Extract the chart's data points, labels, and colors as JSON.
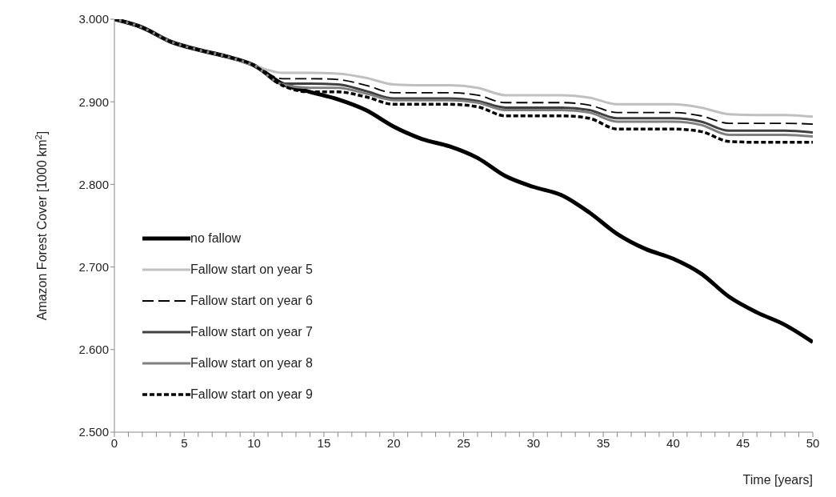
{
  "chart_data": {
    "type": "line",
    "xlabel": "Time  [years]",
    "ylabel": "Amazon Forest Cover [1000 km$^{2}$]",
    "x": [
      0,
      2,
      4,
      6,
      8,
      10,
      12,
      14,
      16,
      18,
      20,
      22,
      24,
      26,
      28,
      30,
      32,
      34,
      36,
      38,
      40,
      42,
      44,
      46,
      48,
      50
    ],
    "series": [
      {
        "name": "no fallow",
        "color": "#000000",
        "line_style": "solid",
        "values": [
          3.0,
          2.99,
          2.973,
          2.963,
          2.955,
          2.944,
          2.922,
          2.912,
          2.903,
          2.89,
          2.87,
          2.855,
          2.846,
          2.832,
          2.81,
          2.797,
          2.787,
          2.766,
          2.74,
          2.722,
          2.71,
          2.692,
          2.664,
          2.645,
          2.63,
          2.609
        ]
      },
      {
        "name": "Fallow start on year 5",
        "color": "#c0c0c0",
        "line_style": "solid",
        "values": [
          3.0,
          2.99,
          2.973,
          2.963,
          2.955,
          2.944,
          2.935,
          2.935,
          2.934,
          2.929,
          2.921,
          2.92,
          2.92,
          2.917,
          2.908,
          2.908,
          2.908,
          2.905,
          2.897,
          2.897,
          2.897,
          2.893,
          2.885,
          2.884,
          2.884,
          2.882
        ]
      },
      {
        "name": "Fallow start on year 6",
        "color": "#000000",
        "line_style": "dashed",
        "values": [
          3.0,
          2.99,
          2.973,
          2.963,
          2.955,
          2.944,
          2.928,
          2.928,
          2.927,
          2.92,
          2.911,
          2.911,
          2.911,
          2.908,
          2.899,
          2.899,
          2.899,
          2.896,
          2.887,
          2.887,
          2.887,
          2.883,
          2.874,
          2.874,
          2.874,
          2.873
        ]
      },
      {
        "name": "Fallow start on year 7",
        "color": "#404040",
        "line_style": "solid",
        "values": [
          3.0,
          2.99,
          2.973,
          2.963,
          2.955,
          2.944,
          2.922,
          2.922,
          2.921,
          2.913,
          2.904,
          2.904,
          2.904,
          2.901,
          2.893,
          2.893,
          2.893,
          2.89,
          2.88,
          2.88,
          2.88,
          2.876,
          2.865,
          2.865,
          2.865,
          2.863
        ]
      },
      {
        "name": "Fallow start on year 8",
        "color": "#808080",
        "line_style": "solid",
        "values": [
          3.0,
          2.99,
          2.973,
          2.963,
          2.955,
          2.944,
          2.921,
          2.917,
          2.917,
          2.91,
          2.902,
          2.902,
          2.902,
          2.899,
          2.89,
          2.89,
          2.89,
          2.887,
          2.876,
          2.876,
          2.876,
          2.872,
          2.86,
          2.86,
          2.86,
          2.858
        ]
      },
      {
        "name": "Fallow start on year 9",
        "color": "#000000",
        "line_style": "dotted",
        "values": [
          3.0,
          2.99,
          2.973,
          2.963,
          2.955,
          2.944,
          2.92,
          2.912,
          2.912,
          2.906,
          2.897,
          2.897,
          2.897,
          2.894,
          2.883,
          2.883,
          2.883,
          2.88,
          2.867,
          2.867,
          2.867,
          2.864,
          2.852,
          2.851,
          2.851,
          2.851
        ]
      }
    ],
    "xlim": [
      0,
      50
    ],
    "xticks": [
      0,
      {
        "value": 1,
        "label": null
      },
      {
        "value": 2,
        "label": null
      },
      {
        "value": 3,
        "label": null
      },
      {
        "value": 4,
        "label": null
      },
      5,
      {
        "value": 6,
        "label": null
      },
      {
        "value": 7,
        "label": null
      },
      {
        "value": 8,
        "label": null
      },
      {
        "value": 9,
        "label": null
      },
      10,
      {
        "value": 11,
        "label": null
      },
      {
        "value": 12,
        "label": null
      },
      {
        "value": 13,
        "label": null
      },
      {
        "value": 14,
        "label": null
      },
      15,
      {
        "value": 16,
        "label": null
      },
      {
        "value": 17,
        "label": null
      },
      {
        "value": 18,
        "label": null
      },
      {
        "value": 19,
        "label": null
      },
      20,
      {
        "value": 21,
        "label": null
      },
      {
        "value": 22,
        "label": null
      },
      {
        "value": 23,
        "label": null
      },
      {
        "value": 24,
        "label": null
      },
      25,
      {
        "value": 26,
        "label": null
      },
      {
        "value": 27,
        "label": null
      },
      {
        "value": 28,
        "label": null
      },
      {
        "value": 29,
        "label": null
      },
      30,
      {
        "value": 31,
        "label": null
      },
      {
        "value": 32,
        "label": null
      },
      {
        "value": 33,
        "label": null
      },
      {
        "value": 34,
        "label": null
      },
      35,
      {
        "value": 36,
        "label": null
      },
      {
        "value": 37,
        "label": null
      },
      {
        "value": 38,
        "label": null
      },
      {
        "value": 39,
        "label": null
      },
      40,
      {
        "value": 41,
        "label": null
      },
      {
        "value": 42,
        "label": null
      },
      {
        "value": 43,
        "label": null
      },
      {
        "value": 44,
        "label": null
      },
      45,
      {
        "value": 46,
        "label": null
      },
      {
        "value": 47,
        "label": null
      },
      {
        "value": 48,
        "label": null
      },
      {
        "value": 49,
        "label": null
      },
      50
    ],
    "ylim": [
      2.5,
      3.0
    ],
    "yticks": [
      {
        "value": 2.5,
        "label": "2.500"
      },
      {
        "value": 2.6,
        "label": "2.600"
      },
      {
        "value": 2.7,
        "label": "2.700"
      },
      {
        "value": 2.8,
        "label": "2.800"
      },
      {
        "value": 2.9,
        "label": "2.900"
      },
      {
        "value": 3.0,
        "label": "3.000"
      }
    ],
    "grid": false,
    "legend": "bottom left",
    "marker": "none"
  }
}
